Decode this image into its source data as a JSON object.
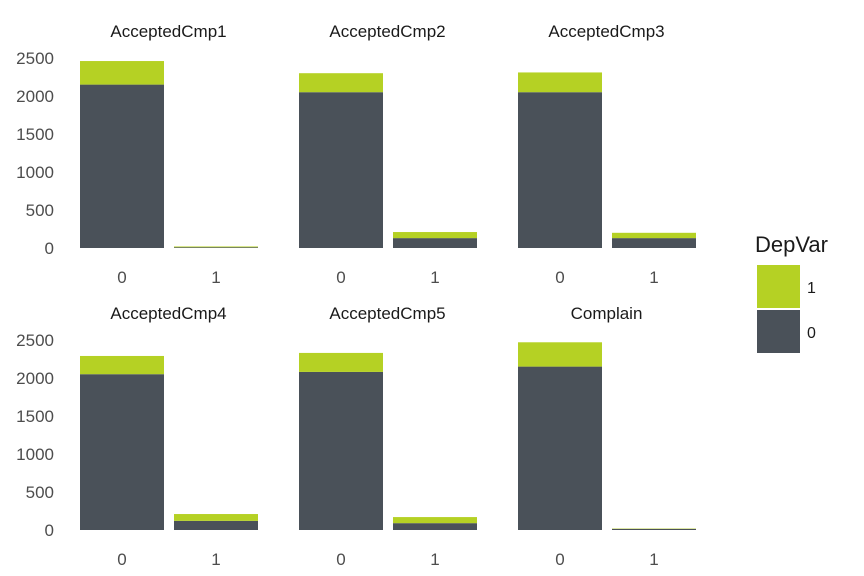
{
  "chart_data": {
    "type": "bar",
    "stacked": true,
    "categories": [
      "0",
      "1"
    ],
    "ylim": [
      0,
      2500
    ],
    "yticks": [
      0,
      500,
      1000,
      1500,
      2000,
      2500
    ],
    "grid": false,
    "legend": {
      "title": "DepVar",
      "position": "right",
      "entries": [
        {
          "label": "1",
          "color": "#b5d124"
        },
        {
          "label": "0",
          "color": "#4a5159"
        }
      ]
    },
    "facets": [
      {
        "title": "AcceptedCmp1",
        "series": [
          {
            "name": "0",
            "values": [
              2150,
              10
            ]
          },
          {
            "name": "1",
            "values": [
              310,
              10
            ]
          }
        ]
      },
      {
        "title": "AcceptedCmp2",
        "series": [
          {
            "name": "0",
            "values": [
              2050,
              130
            ]
          },
          {
            "name": "1",
            "values": [
              250,
              80
            ]
          }
        ]
      },
      {
        "title": "AcceptedCmp3",
        "series": [
          {
            "name": "0",
            "values": [
              2050,
              130
            ]
          },
          {
            "name": "1",
            "values": [
              260,
              70
            ]
          }
        ]
      },
      {
        "title": "AcceptedCmp4",
        "series": [
          {
            "name": "0",
            "values": [
              2050,
              120
            ]
          },
          {
            "name": "1",
            "values": [
              240,
              90
            ]
          }
        ]
      },
      {
        "title": "AcceptedCmp5",
        "series": [
          {
            "name": "0",
            "values": [
              2080,
              90
            ]
          },
          {
            "name": "1",
            "values": [
              250,
              80
            ]
          }
        ]
      },
      {
        "title": "Complain",
        "series": [
          {
            "name": "0",
            "values": [
              2150,
              15
            ]
          },
          {
            "name": "1",
            "values": [
              320,
              5
            ]
          }
        ]
      }
    ]
  }
}
